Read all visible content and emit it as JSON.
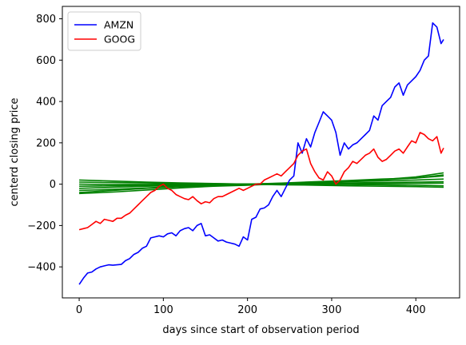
{
  "chart_data": {
    "type": "line",
    "title": "",
    "xlabel": "days since start of observation period",
    "ylabel": "centerd closing price",
    "xlim": [
      -20,
      452
    ],
    "ylim": [
      -550,
      860
    ],
    "xticks": [
      0,
      100,
      200,
      300,
      400
    ],
    "yticks": [
      -400,
      -200,
      0,
      200,
      400,
      600,
      800
    ],
    "grid": false,
    "legend_position": "upper left",
    "series": [
      {
        "name": "AMZN",
        "color": "#0000ff",
        "x": [
          0,
          5,
          10,
          15,
          20,
          25,
          30,
          35,
          40,
          45,
          50,
          55,
          60,
          65,
          70,
          75,
          80,
          85,
          90,
          95,
          100,
          105,
          110,
          115,
          120,
          125,
          130,
          135,
          140,
          145,
          150,
          155,
          160,
          165,
          170,
          175,
          180,
          185,
          190,
          195,
          200,
          205,
          210,
          215,
          220,
          225,
          230,
          235,
          240,
          245,
          250,
          255,
          260,
          265,
          270,
          275,
          280,
          285,
          290,
          295,
          300,
          305,
          310,
          315,
          320,
          325,
          330,
          335,
          340,
          345,
          350,
          355,
          360,
          365,
          370,
          375,
          380,
          385,
          390,
          395,
          400,
          405,
          410,
          415,
          420,
          425,
          430,
          433
        ],
        "y": [
          -485,
          -455,
          -430,
          -425,
          -410,
          -400,
          -395,
          -390,
          -392,
          -390,
          -388,
          -370,
          -360,
          -340,
          -330,
          -310,
          -300,
          -260,
          -255,
          -250,
          -255,
          -240,
          -235,
          -250,
          -225,
          -215,
          -210,
          -225,
          -200,
          -190,
          -250,
          -245,
          -260,
          -275,
          -270,
          -280,
          -285,
          -290,
          -300,
          -255,
          -270,
          -170,
          -160,
          -120,
          -115,
          -100,
          -60,
          -30,
          -60,
          -20,
          20,
          40,
          200,
          150,
          220,
          180,
          250,
          300,
          350,
          330,
          310,
          250,
          140,
          200,
          170,
          190,
          200,
          220,
          240,
          260,
          330,
          310,
          380,
          400,
          420,
          470,
          490,
          430,
          480,
          500,
          520,
          550,
          600,
          620,
          780,
          760,
          680,
          700
        ]
      },
      {
        "name": "GOOG",
        "color": "#ff0000",
        "x": [
          0,
          5,
          10,
          15,
          20,
          25,
          30,
          35,
          40,
          45,
          50,
          55,
          60,
          65,
          70,
          75,
          80,
          85,
          90,
          95,
          100,
          105,
          110,
          115,
          120,
          125,
          130,
          135,
          140,
          145,
          150,
          155,
          160,
          165,
          170,
          175,
          180,
          185,
          190,
          195,
          200,
          205,
          210,
          215,
          220,
          225,
          230,
          235,
          240,
          245,
          250,
          255,
          260,
          265,
          270,
          275,
          280,
          285,
          290,
          295,
          300,
          305,
          310,
          315,
          320,
          325,
          330,
          335,
          340,
          345,
          350,
          355,
          360,
          365,
          370,
          375,
          380,
          385,
          390,
          395,
          400,
          405,
          410,
          415,
          420,
          425,
          430,
          433
        ],
        "y": [
          -220,
          -215,
          -210,
          -195,
          -180,
          -190,
          -170,
          -175,
          -180,
          -165,
          -165,
          -150,
          -140,
          -120,
          -100,
          -80,
          -60,
          -40,
          -30,
          -10,
          0,
          -20,
          -30,
          -50,
          -60,
          -70,
          -75,
          -60,
          -80,
          -95,
          -85,
          -90,
          -70,
          -60,
          -60,
          -50,
          -40,
          -30,
          -20,
          -30,
          -20,
          -10,
          0,
          0,
          20,
          30,
          40,
          50,
          40,
          60,
          80,
          100,
          140,
          160,
          170,
          100,
          60,
          30,
          20,
          60,
          40,
          0,
          20,
          60,
          80,
          110,
          100,
          120,
          140,
          150,
          170,
          130,
          110,
          120,
          140,
          160,
          170,
          150,
          180,
          210,
          200,
          250,
          240,
          220,
          210,
          230,
          150,
          175
        ]
      },
      {
        "name": "",
        "color": "#008000",
        "x": [
          0,
          40,
          80,
          120,
          160,
          200,
          240,
          280,
          320,
          360,
          400,
          433
        ],
        "y": [
          -40,
          -30,
          -20,
          -12,
          -8,
          -4,
          4,
          8,
          15,
          22,
          35,
          55
        ]
      },
      {
        "name": "",
        "color": "#008000",
        "x": [
          0,
          40,
          80,
          120,
          160,
          200,
          240,
          280,
          320,
          360,
          400,
          433
        ],
        "y": [
          -30,
          -25,
          -18,
          -10,
          -5,
          0,
          5,
          12,
          18,
          25,
          30,
          40
        ]
      },
      {
        "name": "",
        "color": "#008000",
        "x": [
          0,
          40,
          80,
          120,
          160,
          200,
          240,
          280,
          320,
          360,
          400,
          433
        ],
        "y": [
          -20,
          -15,
          -10,
          -6,
          -3,
          0,
          4,
          8,
          12,
          16,
          20,
          25
        ]
      },
      {
        "name": "",
        "color": "#008000",
        "x": [
          0,
          40,
          80,
          120,
          160,
          200,
          240,
          280,
          320,
          360,
          400,
          433
        ],
        "y": [
          -10,
          -8,
          -5,
          -3,
          -2,
          0,
          2,
          4,
          6,
          8,
          10,
          12
        ]
      },
      {
        "name": "",
        "color": "#008000",
        "x": [
          0,
          40,
          80,
          120,
          160,
          200,
          240,
          280,
          320,
          360,
          400,
          433
        ],
        "y": [
          0,
          -2,
          -1,
          0,
          0,
          0,
          1,
          2,
          2,
          3,
          4,
          5
        ]
      },
      {
        "name": "",
        "color": "#008000",
        "x": [
          0,
          40,
          80,
          120,
          160,
          200,
          240,
          280,
          320,
          360,
          400,
          433
        ],
        "y": [
          10,
          8,
          6,
          4,
          2,
          0,
          -1,
          -2,
          -2,
          -3,
          -5,
          -8
        ]
      },
      {
        "name": "",
        "color": "#008000",
        "x": [
          0,
          40,
          80,
          120,
          160,
          200,
          240,
          280,
          320,
          360,
          400,
          433
        ],
        "y": [
          20,
          15,
          10,
          6,
          3,
          0,
          -3,
          -5,
          -8,
          -10,
          -12,
          -15
        ]
      },
      {
        "name": "",
        "color": "#008000",
        "x": [
          0,
          40,
          80,
          120,
          160,
          200,
          240,
          280,
          320,
          360,
          400,
          433
        ],
        "y": [
          -45,
          -38,
          -28,
          -18,
          -10,
          -5,
          2,
          10,
          16,
          22,
          30,
          45
        ]
      }
    ]
  }
}
